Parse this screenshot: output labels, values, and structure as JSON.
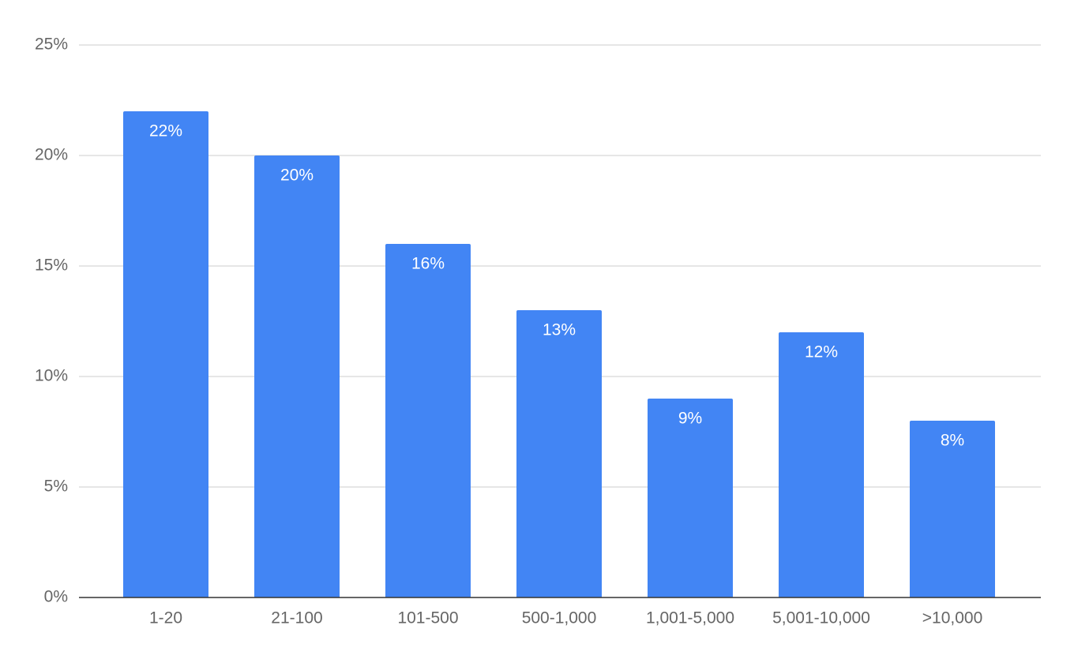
{
  "chart_data": {
    "type": "bar",
    "categories": [
      "1-20",
      "21-100",
      "101-500",
      "500-1,000",
      "1,001-5,000",
      "5,001-10,000",
      ">10,000"
    ],
    "values": [
      22,
      20,
      16,
      13,
      9,
      12,
      8
    ],
    "value_labels": [
      "22%",
      "20%",
      "16%",
      "13%",
      "9%",
      "12%",
      "8%"
    ],
    "color": "#4285f4",
    "ylim": [
      0,
      25
    ],
    "yticks": [
      {
        "value": 0,
        "label": "0%"
      },
      {
        "value": 5,
        "label": "5%"
      },
      {
        "value": 10,
        "label": "10%"
      },
      {
        "value": 15,
        "label": "15%"
      },
      {
        "value": 20,
        "label": "20%"
      },
      {
        "value": 25,
        "label": "25%"
      }
    ],
    "grid": true
  }
}
